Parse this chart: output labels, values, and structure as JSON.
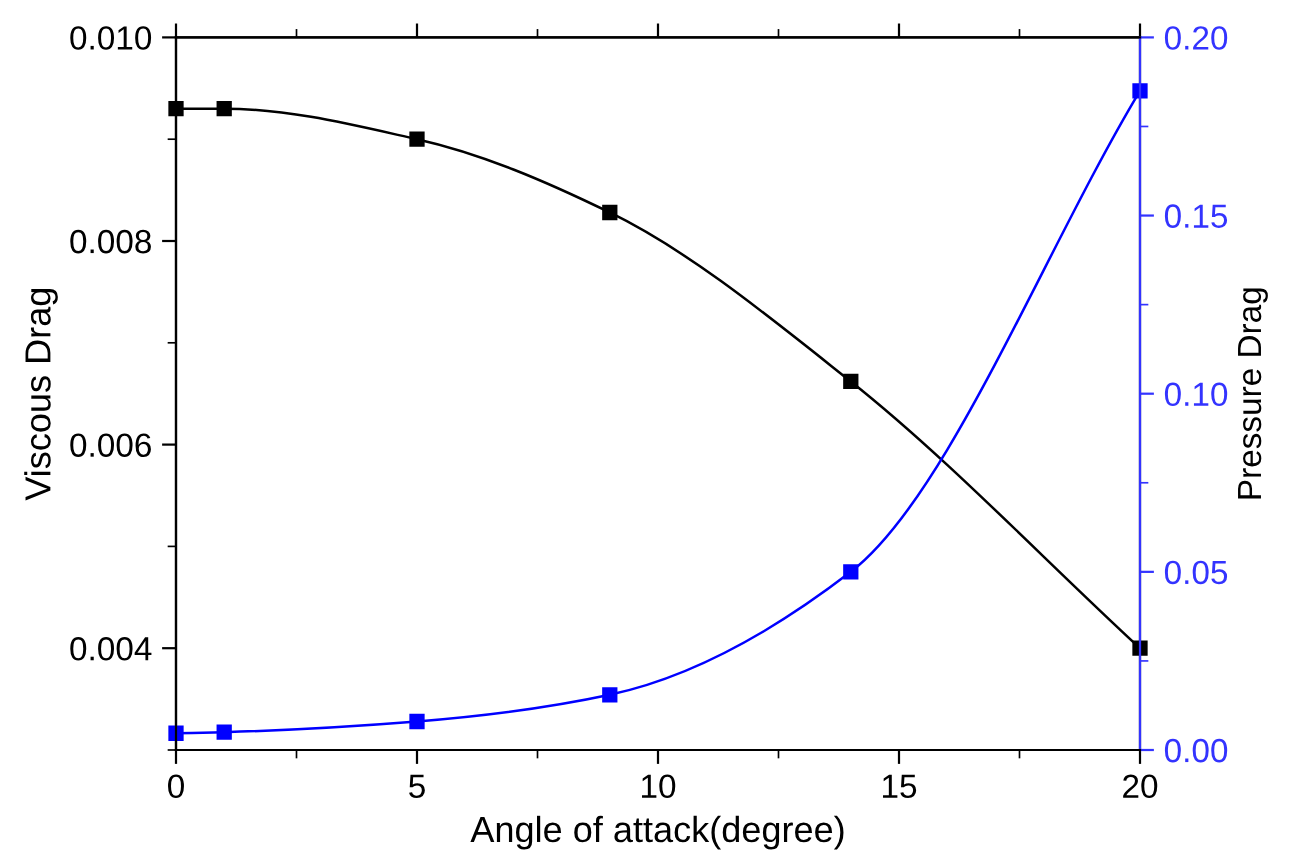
{
  "chart_data": {
    "type": "line",
    "xlabel": "Angle of attack(degree)",
    "ylabel": "Viscous Drag",
    "y2label": "Pressure Drag",
    "x": [
      0,
      1,
      5,
      9,
      14,
      20
    ],
    "series": [
      {
        "color": "#000000",
        "values": [
          0.0093,
          0.0093,
          0.009,
          0.00828,
          0.00662,
          0.004
        ]
      },
      {
        "color": "#0000ff",
        "axis": "y2",
        "values": [
          0.0047,
          0.005,
          0.008,
          0.0155,
          0.05,
          0.185
        ]
      }
    ],
    "xlim": [
      0,
      20
    ],
    "xticks": [
      0,
      5,
      10,
      15,
      20
    ],
    "ylim": [
      0.003,
      0.01
    ],
    "yticks": [
      {
        "value": 0.004,
        "label": "0.004"
      },
      {
        "value": 0.006,
        "label": "0.006"
      },
      {
        "value": 0.008,
        "label": "0.008"
      },
      {
        "value": 0.01,
        "label": "0.010"
      }
    ],
    "y2lim": [
      0,
      0.2
    ],
    "y2ticks": [
      {
        "value": 0,
        "label": "0.00"
      },
      {
        "value": 0.05,
        "label": "0.05"
      },
      {
        "value": 0.1,
        "label": "0.10"
      },
      {
        "value": 0.15,
        "label": "0.15"
      },
      {
        "value": 0.2,
        "label": "0.20"
      }
    ],
    "marker": "square",
    "line_style": "solid",
    "grid": false,
    "legend": false
  }
}
